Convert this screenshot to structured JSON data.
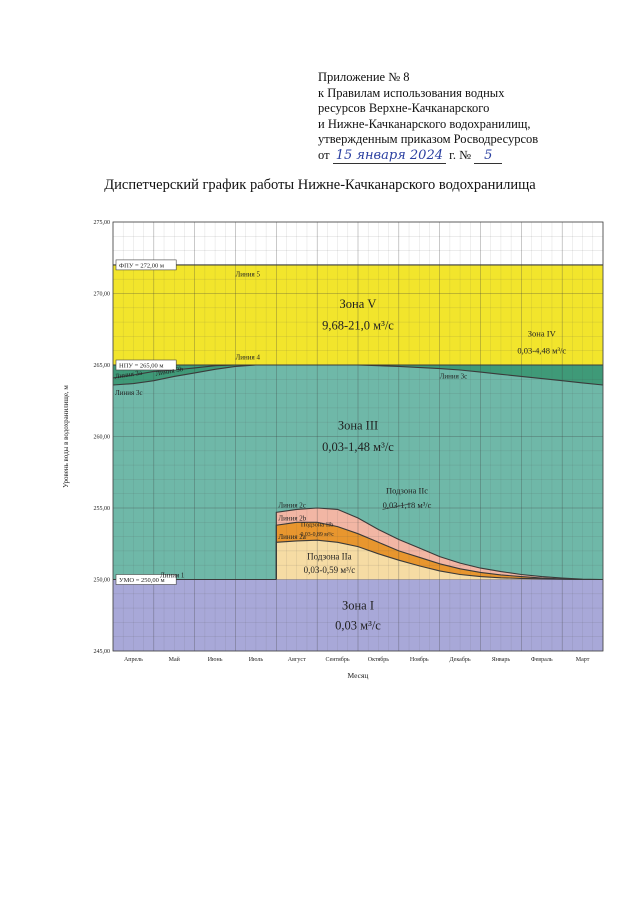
{
  "header": {
    "appendix_lines": [
      "Приложение № 8",
      "к Правилам использования водных",
      "ресурсов Верхне-Качканарского",
      "и Нижне-Качканарского водохранилищ,",
      "утвержденным приказом Росводресурсов"
    ],
    "order_prefix": "от",
    "order_date_handwritten": "15 января 2024",
    "order_year_suffix": "г. №",
    "order_number_handwritten": "5"
  },
  "document_title": "Диспетчерский график работы Нижне-Качканарского водохранилища",
  "chart_data": {
    "type": "area",
    "xlabel": "Месяц",
    "ylabel": "Уровень воды в водохранилище, м",
    "categories": [
      "Апрель",
      "Май",
      "Июнь",
      "Июль",
      "Август",
      "Сентябрь",
      "Октябрь",
      "Ноябрь",
      "Декабрь",
      "Январь",
      "Февраль",
      "Март"
    ],
    "ylim": [
      245,
      275
    ],
    "yticks": [
      "245,00",
      "250,00",
      "255,00",
      "260,00",
      "265,00",
      "270,00",
      "275,00"
    ],
    "grid": true,
    "reference_levels": [
      {
        "label": "ФПУ = 272,00 м",
        "value": 272.0
      },
      {
        "label": "НПУ = 265,00 м",
        "value": 265.0
      },
      {
        "label": "УМО = 250,00 м",
        "value": 250.0
      }
    ],
    "colors": {
      "zone_V": "#f2e52c",
      "zone_IV": "#3f9a78",
      "zone_III": "#6fb8a8",
      "subzone_IIc": "#f2b6a4",
      "subzone_IIb": "#e8962e",
      "subzone_IIa": "#f6dca4",
      "zone_I": "#a8a8d8",
      "line": "#3a3a3a"
    },
    "lines": {
      "line_1": {
        "label": "Линия 1",
        "x": [
          0,
          4.0
        ],
        "y": [
          250.0,
          250.0
        ]
      },
      "line_2a": {
        "label": "Линия 2а",
        "x": [
          4.0,
          4.0,
          4.5,
          5.0,
          5.5,
          6.0,
          6.5,
          7.0,
          7.5,
          8.0,
          8.5,
          9.0,
          9.5,
          10.0,
          10.5,
          11.0,
          11.5,
          12.0
        ],
        "y": [
          250.0,
          252.6,
          252.7,
          252.75,
          252.6,
          252.3,
          251.8,
          251.35,
          250.95,
          250.6,
          250.35,
          250.2,
          250.12,
          250.08,
          250.05,
          250.02,
          250.0,
          250.0
        ]
      },
      "line_2b": {
        "label": "Линия 2b",
        "x": [
          4.0,
          4.0,
          4.5,
          5.0,
          5.5,
          6.0,
          6.5,
          7.0,
          7.5,
          8.0,
          8.5,
          9.0,
          9.5,
          10.0,
          10.5,
          11.0,
          11.5,
          12.0
        ],
        "y": [
          250.0,
          253.8,
          254.0,
          254.0,
          253.7,
          253.2,
          252.6,
          252.0,
          251.55,
          251.1,
          250.75,
          250.5,
          250.32,
          250.2,
          250.1,
          250.04,
          250.0,
          250.0
        ]
      },
      "line_2c": {
        "label": "Линия 2c",
        "x": [
          4.0,
          4.0,
          4.5,
          5.0,
          5.5,
          6.0,
          6.5,
          7.0,
          7.5,
          8.0,
          8.5,
          9.0,
          9.5,
          10.0,
          10.5,
          11.0,
          11.5,
          12.0
        ],
        "y": [
          250.0,
          254.7,
          254.9,
          255.0,
          254.9,
          254.3,
          253.5,
          252.8,
          252.2,
          251.6,
          251.15,
          250.8,
          250.55,
          250.35,
          250.2,
          250.1,
          250.02,
          250.0
        ]
      },
      "line_3c": {
        "label": "Линия 3с",
        "x": [
          0,
          0.5,
          1.0,
          1.5,
          2.0,
          2.5,
          3.0,
          3.5,
          4.0,
          5.0,
          6.0,
          7.0,
          8.0,
          8.5,
          9.0,
          9.5,
          10.0,
          10.5,
          11.0,
          11.5,
          12.0
        ],
        "y": [
          263.6,
          263.7,
          263.9,
          264.2,
          264.45,
          264.7,
          264.9,
          265.0,
          265.0,
          265.0,
          265.0,
          264.9,
          264.75,
          264.65,
          264.5,
          264.35,
          264.2,
          264.05,
          263.9,
          263.75,
          263.6
        ]
      },
      "line_4": {
        "label": "Линия 4",
        "x": [
          0,
          12
        ],
        "y": [
          265.0,
          265.0
        ]
      },
      "line_5": {
        "label": "Линия 5",
        "x": [
          0,
          12
        ],
        "y": [
          272.0,
          272.0
        ]
      }
    },
    "line_labels": [
      "Линия 1",
      "Линия 2а",
      "Линия 2b",
      "Линия 2c",
      "Линия 3а",
      "Линия 3b",
      "Линия 3с",
      "Линия 3с",
      "Линия 4",
      "Линия 5"
    ],
    "zones": [
      {
        "name": "Зона V",
        "flow": "9,68-21,0 м³/с"
      },
      {
        "name": "Зона IV",
        "flow": "0,03-4,48 м³/с"
      },
      {
        "name": "Зона III",
        "flow": "0,03-1,48 м³/с"
      },
      {
        "name": "Подзона IIc",
        "flow": "0,03-1,18 м³/с"
      },
      {
        "name": "Подзона IIb",
        "flow": "0,03-0,89 м³/с"
      },
      {
        "name": "Подзона IIa",
        "flow": "0,03-0,59 м³/с"
      },
      {
        "name": "Зона I",
        "flow": "0,03 м³/с"
      }
    ]
  }
}
